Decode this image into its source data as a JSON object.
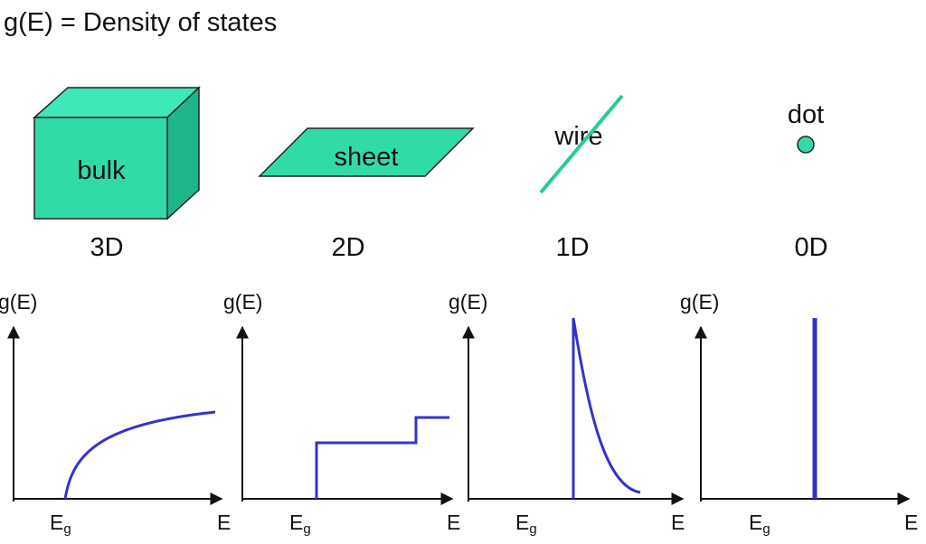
{
  "title": "g(E) = Density of states",
  "panels": [
    {
      "shape_label": "bulk",
      "dimension": "3D",
      "y_label": "g(E)",
      "gap_label": {
        "main": "E",
        "sub": "g"
      },
      "x_label": "E"
    },
    {
      "shape_label": "sheet",
      "dimension": "2D",
      "y_label": "g(E)",
      "gap_label": {
        "main": "E",
        "sub": "g"
      },
      "x_label": "E"
    },
    {
      "shape_label": "wire",
      "dimension": "1D",
      "y_label": "g(E)",
      "gap_label": {
        "main": "E",
        "sub": "g"
      },
      "x_label": "E"
    },
    {
      "shape_label": "dot",
      "dimension": "0D",
      "y_label": "g(E)",
      "gap_label": {
        "main": "E",
        "sub": "g"
      },
      "x_label": "E"
    }
  ]
}
